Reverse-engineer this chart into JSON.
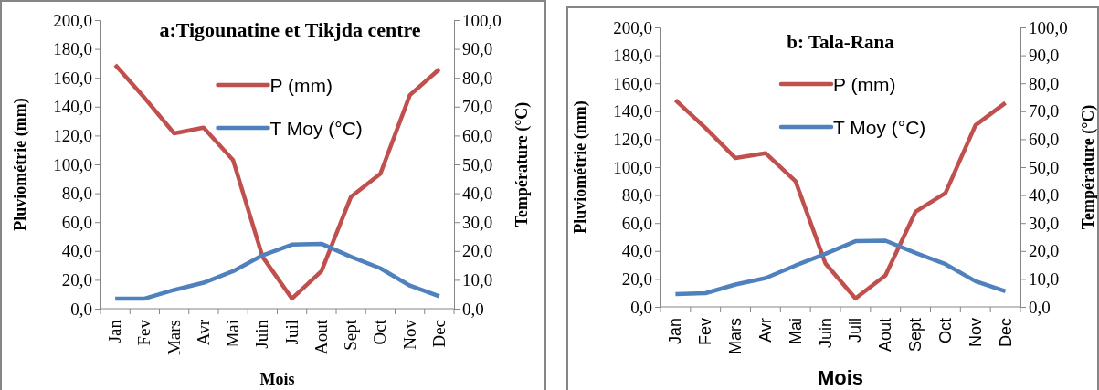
{
  "chart_data": [
    {
      "type": "line",
      "title": "a:Tigounatine et Tikjda centre",
      "xlabel": "Mois",
      "ylabel": "Pluviométrie (mm)",
      "y2label": "Température (°C)",
      "categories": [
        "Jan",
        "Fev",
        "Mars",
        "Avr",
        "Mai",
        "Juin",
        "Juil",
        "Aout",
        "Sept",
        "Oct",
        "Nov",
        "Dec"
      ],
      "series": [
        {
          "name": "P (mm)",
          "color": "#c0504d",
          "values": [
            169,
            146,
            121.5,
            125.5,
            103,
            36,
            7,
            26,
            77.5,
            93.5,
            148,
            166
          ]
        },
        {
          "name": "T Moy (°C)",
          "color": "#4f81bd",
          "axis": "y2",
          "values": [
            3.5,
            3.5,
            6.5,
            9,
            13,
            18.5,
            22.2,
            22.5,
            18,
            14,
            8,
            4.3
          ]
        }
      ],
      "ylim": [
        0,
        200
      ],
      "yticks": [
        {
          "value": 0,
          "label": "0,0"
        },
        {
          "value": 20,
          "label": "20,0"
        },
        {
          "value": 40,
          "label": "40,0"
        },
        {
          "value": 60,
          "label": "60,0"
        },
        {
          "value": 80,
          "label": "80,0"
        },
        {
          "value": 100,
          "label": "100,0"
        },
        {
          "value": 120,
          "label": "120,0"
        },
        {
          "value": 140,
          "label": "140,0"
        },
        {
          "value": 160,
          "label": "160,0"
        },
        {
          "value": 180,
          "label": "180,0"
        },
        {
          "value": 200,
          "label": "200,0"
        }
      ],
      "y2lim": [
        0,
        100
      ],
      "y2ticks": [
        {
          "value": 0,
          "label": "0,0"
        },
        {
          "value": 10,
          "label": "10,0"
        },
        {
          "value": 20,
          "label": "20,0"
        },
        {
          "value": 30,
          "label": "30,0"
        },
        {
          "value": 40,
          "label": "40,0"
        },
        {
          "value": 50,
          "label": "50,0"
        },
        {
          "value": 60,
          "label": "60,0"
        },
        {
          "value": 70,
          "label": "70,0"
        },
        {
          "value": 80,
          "label": "80,0"
        },
        {
          "value": 90,
          "label": "90,0"
        },
        {
          "value": 100,
          "label": "100,0"
        }
      ],
      "legend": "top",
      "grid": false,
      "marker": "none",
      "line_style": "solid"
    },
    {
      "type": "line",
      "title": "b: Tala-Rana",
      "xlabel": "Mois",
      "ylabel": "Pluviométrie (mm)",
      "y2label": "Température (°C)",
      "categories": [
        "Jan",
        "Fev",
        "Mars",
        "Avr",
        "Mai",
        "Juin",
        "Juil",
        "Aout",
        "Sept",
        "Oct",
        "Nov",
        "Dec"
      ],
      "series": [
        {
          "name": "P (mm)",
          "color": "#c0504d",
          "values": [
            148,
            128,
            106.5,
            110,
            90,
            31,
            6,
            22.5,
            68,
            81.5,
            130,
            146
          ]
        },
        {
          "name": "T Moy (°C)",
          "color": "#4f81bd",
          "axis": "y2",
          "values": [
            4.6,
            4.9,
            8,
            10.3,
            14.8,
            19,
            23.5,
            23.7,
            19.3,
            15.3,
            9.2,
            5.6
          ]
        }
      ],
      "ylim": [
        0,
        200
      ],
      "yticks": [
        {
          "value": 0,
          "label": "0,0"
        },
        {
          "value": 20,
          "label": "20,0"
        },
        {
          "value": 40,
          "label": "40,0"
        },
        {
          "value": 60,
          "label": "60,0"
        },
        {
          "value": 80,
          "label": "80,0"
        },
        {
          "value": 100,
          "label": "100,0"
        },
        {
          "value": 120,
          "label": "120,0"
        },
        {
          "value": 140,
          "label": "140,0"
        },
        {
          "value": 160,
          "label": "160,0"
        },
        {
          "value": 180,
          "label": "180,0"
        },
        {
          "value": 200,
          "label": "200,0"
        }
      ],
      "y2lim": [
        0,
        100
      ],
      "y2ticks": [
        {
          "value": 0,
          "label": "0,0"
        },
        {
          "value": 10,
          "label": "10,0"
        },
        {
          "value": 20,
          "label": "20,0"
        },
        {
          "value": 30,
          "label": "30,0"
        },
        {
          "value": 40,
          "label": "40,0"
        },
        {
          "value": 50,
          "label": "50,0"
        },
        {
          "value": 60,
          "label": "60,0"
        },
        {
          "value": 70,
          "label": "70,0"
        },
        {
          "value": 80,
          "label": "80,0"
        },
        {
          "value": 90,
          "label": "90,0"
        },
        {
          "value": 100,
          "label": "100,0"
        }
      ],
      "legend": "top",
      "grid": false,
      "marker": "none",
      "line_style": "solid"
    }
  ]
}
